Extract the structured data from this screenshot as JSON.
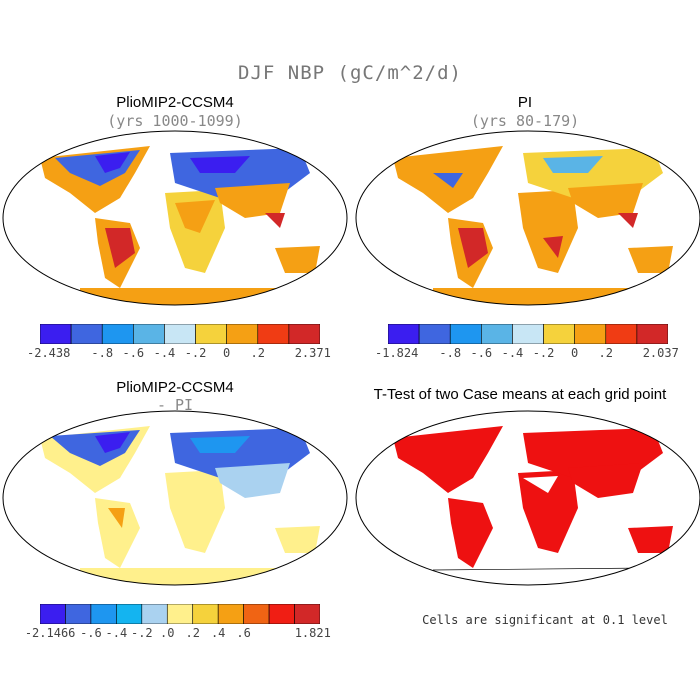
{
  "figure": {
    "title": "DJF NBP (gC/m^2/d)"
  },
  "panels": {
    "top_left": {
      "title": "PlioMIP2-CCSM4",
      "subtitle": "(yrs 1000-1099)"
    },
    "top_right": {
      "title": "PI",
      "subtitle": "(yrs 80-179)"
    },
    "bottom_left": {
      "title": "PlioMIP2-CCSM4",
      "subtitle": "- PI"
    },
    "bottom_right": {
      "title": "T-Test of two Case means at each grid point",
      "footnote": "Cells are significant at 0.1 level"
    }
  },
  "colorbars": {
    "top_left": {
      "colors": [
        "#3b1ef0",
        "#3f66e0",
        "#1e96f0",
        "#5ab4e6",
        "#c8e6f5",
        "#f5d23c",
        "#f5a014",
        "#f03c14",
        "#d22828"
      ],
      "labels": [
        "-2.438",
        "-.8",
        "-.6",
        "-.4",
        "-.2",
        "0",
        ".2",
        "2.371"
      ]
    },
    "top_right": {
      "colors": [
        "#3b1ef0",
        "#3f66e0",
        "#1e96f0",
        "#5ab4e6",
        "#c8e6f5",
        "#f5d23c",
        "#f5a014",
        "#f03c14",
        "#d22828"
      ],
      "labels": [
        "-1.824",
        "-.8",
        "-.6",
        "-.4",
        "-.2",
        "0",
        ".2",
        "2.037"
      ]
    },
    "bottom_left": {
      "colors": [
        "#3b1ef0",
        "#3f66e0",
        "#1e96f0",
        "#14b4f0",
        "#aad2f0",
        "#fff08c",
        "#f5d23c",
        "#f5a014",
        "#f06414",
        "#f01e14",
        "#d22828"
      ],
      "labels": [
        "-2.1466",
        "-.6",
        "-.4",
        "-.2",
        ".0",
        ".2",
        ".4",
        ".6",
        "1.821"
      ]
    }
  },
  "colors": {
    "land_red": "#ee1111",
    "outline": "#000000"
  }
}
